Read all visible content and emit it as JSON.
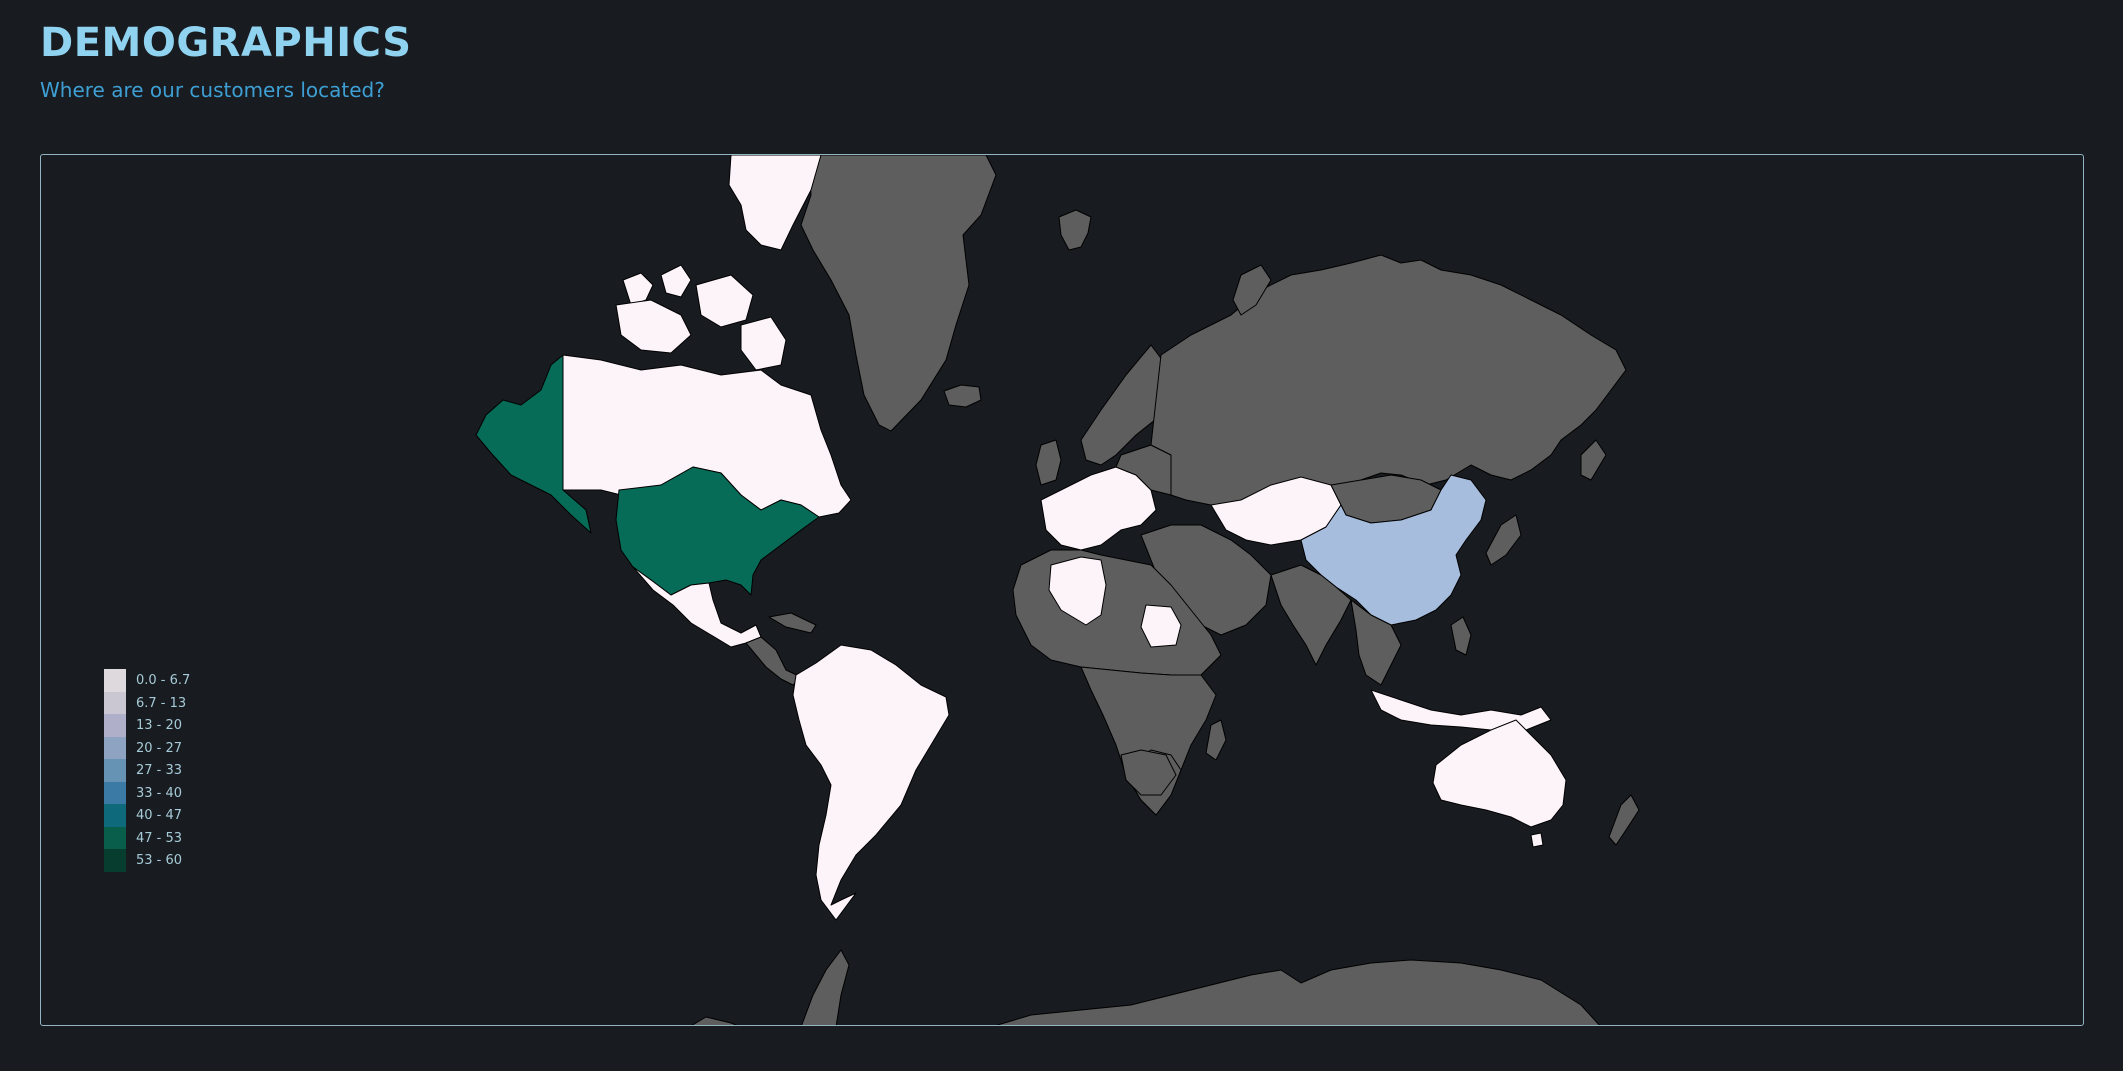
{
  "header": {
    "title": "DEMOGRAPHICS",
    "subtitle": "Where are our customers located?"
  },
  "colors": {
    "background": "#181b1f",
    "no_data": "#5e5e5e",
    "ocean": "#181b1f",
    "border": "#000000",
    "panel_border": "#93b4c2"
  },
  "legend": {
    "items": [
      {
        "label": "0.0 - 6.7",
        "color": "#ddd9dc"
      },
      {
        "label": "6.7 - 13",
        "color": "#cac6d2"
      },
      {
        "label": "13 - 20",
        "color": "#afafc9"
      },
      {
        "label": "20 - 27",
        "color": "#8ea3c1"
      },
      {
        "label": "27 - 33",
        "color": "#6692b4"
      },
      {
        "label": "33 - 40",
        "color": "#3b7aa5"
      },
      {
        "label": "40 - 47",
        "color": "#0e6a7a"
      },
      {
        "label": "47 - 53",
        "color": "#085e4a"
      },
      {
        "label": "53 - 60",
        "color": "#063d2e"
      }
    ]
  },
  "chart_data": {
    "type": "choropleth",
    "value_range": [
      0,
      60
    ],
    "regions": [
      {
        "name": "United States",
        "value": 50,
        "color": "#066b57"
      },
      {
        "name": "Alaska",
        "value": 50,
        "color": "#066b57"
      },
      {
        "name": "China",
        "value": 22,
        "color": "#a7bddd"
      },
      {
        "name": "Canada",
        "value": 2,
        "color": "#fdf4f9"
      },
      {
        "name": "Mexico",
        "value": 2,
        "color": "#fdf4f9"
      },
      {
        "name": "South America",
        "value": 2,
        "color": "#fdf4f9"
      },
      {
        "name": "Western Europe",
        "value": 2,
        "color": "#fdf4f9"
      },
      {
        "name": "Kazakhstan",
        "value": 2,
        "color": "#fdf4f9"
      },
      {
        "name": "Australia",
        "value": 2,
        "color": "#fdf4f9"
      },
      {
        "name": "Sub-Saharan Africa (partial)",
        "value": 2,
        "color": "#fdf4f9"
      },
      {
        "name": "Algeria",
        "value": 2,
        "color": "#fdf4f9"
      },
      {
        "name": "Sudan",
        "value": 2,
        "color": "#fdf4f9"
      },
      {
        "name": "Indonesia",
        "value": 2,
        "color": "#fdf4f9"
      },
      {
        "name": "Russia",
        "value": null,
        "color": "#5e5e5e"
      },
      {
        "name": "Greenland",
        "value": null,
        "color": "#5e5e5e"
      },
      {
        "name": "India",
        "value": null,
        "color": "#5e5e5e"
      },
      {
        "name": "Antarctica",
        "value": null,
        "color": "#5e5e5e"
      }
    ]
  }
}
